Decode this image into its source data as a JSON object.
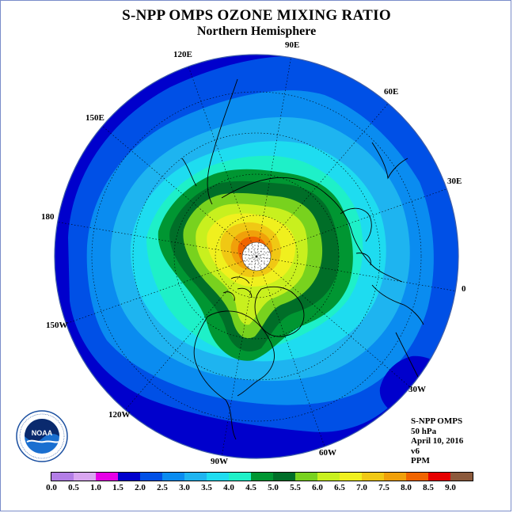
{
  "title": "S-NPP OMPS OZONE MIXING RATIO",
  "subtitle": "Northern Hemisphere",
  "longitude_labels": [
    "90E",
    "60E",
    "30E",
    "0",
    "30W",
    "60W",
    "90W",
    "120W",
    "150W",
    "180",
    "150E",
    "120E"
  ],
  "info": {
    "instrument": "S-NPP OMPS",
    "level": "50 hPa",
    "date": "April 10, 2016",
    "version": "v6",
    "units": "PPM"
  },
  "logo_text": "NOAA",
  "colorbar": {
    "ticks": [
      "0.0",
      "0.5",
      "1.0",
      "1.5",
      "2.0",
      "2.5",
      "3.0",
      "3.5",
      "4.0",
      "4.5",
      "5.0",
      "5.5",
      "6.0",
      "6.5",
      "7.0",
      "7.5",
      "8.0",
      "8.5",
      "9.0"
    ],
    "colors": [
      "#b37ee6",
      "#d9a6f0",
      "#e600e6",
      "#0000cc",
      "#0050e6",
      "#0a8cf0",
      "#1eb4f0",
      "#1edcf0",
      "#1ef0c8",
      "#009632",
      "#006e28",
      "#78d21e",
      "#c8f01e",
      "#f0f01e",
      "#f0c814",
      "#f0a00a",
      "#f06400",
      "#e60000",
      "#8c5a3c"
    ]
  },
  "colors": {
    "frame": "#7a8cc9",
    "globe_edge": "#3f5ea8"
  }
}
